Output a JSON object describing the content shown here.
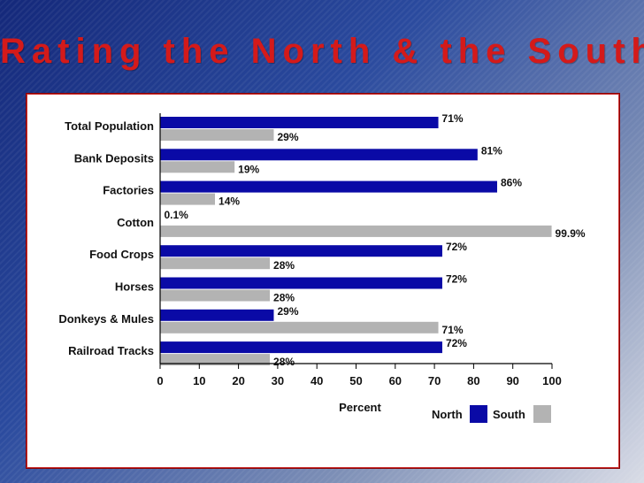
{
  "slide": {
    "title": "Rating the North & the South"
  },
  "colors": {
    "north": "#0a0aa6",
    "south": "#b3b3b3",
    "title": "#d41a1a"
  },
  "chart_data": {
    "type": "bar",
    "orientation": "horizontal",
    "title": "",
    "xlabel": "Percent",
    "ylabel": "",
    "xlim": [
      0,
      100
    ],
    "xticks": [
      0,
      10,
      20,
      30,
      40,
      50,
      60,
      70,
      80,
      90,
      100
    ],
    "grid": false,
    "legend_position": "bottom-right",
    "categories": [
      "Total Population",
      "Bank Deposits",
      "Factories",
      "Cotton",
      "Food Crops",
      "Horses",
      "Donkeys & Mules",
      "Railroad Tracks"
    ],
    "series": [
      {
        "name": "North",
        "values": [
          71,
          81,
          86,
          0.1,
          72,
          72,
          29,
          72
        ],
        "labels": [
          "71%",
          "81%",
          "86%",
          "0.1%",
          "72%",
          "72%",
          "29%",
          "72%"
        ]
      },
      {
        "name": "South",
        "values": [
          29,
          19,
          14,
          99.9,
          28,
          28,
          71,
          28
        ],
        "labels": [
          "29%",
          "19%",
          "14%",
          "99.9%",
          "28%",
          "28%",
          "71%",
          "28%"
        ]
      }
    ]
  }
}
